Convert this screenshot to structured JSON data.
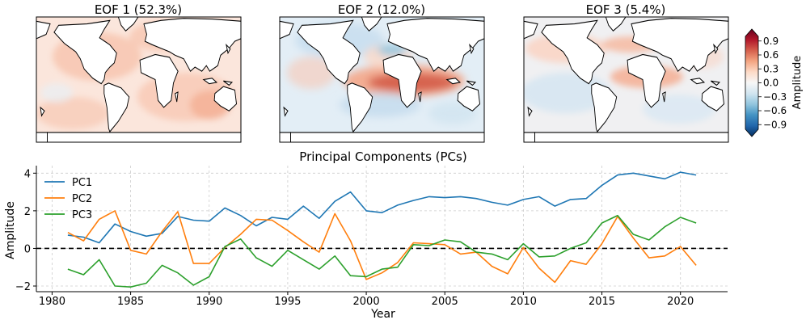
{
  "maps": [
    {
      "title": "EOF 1 (52.3%)"
    },
    {
      "title": "EOF 2 (12.0%)"
    },
    {
      "title": "EOF 3 (5.4%)"
    }
  ],
  "colorbar": {
    "label": "Amplitude",
    "ticks": [
      "0.9",
      "0.6",
      "0.3",
      "0.0",
      "−0.3",
      "−0.6",
      "−0.9"
    ],
    "range": [
      -1.0,
      1.0
    ],
    "colors": [
      "#053061",
      "#2166ac",
      "#4393c3",
      "#92c5de",
      "#d1e5f0",
      "#f7f7f7",
      "#fddbc7",
      "#f4a582",
      "#d6604d",
      "#b2182b",
      "#67001f"
    ]
  },
  "chart_data": {
    "type": "line",
    "title": "Principal Components (PCs)",
    "xlabel": "Year",
    "ylabel": "Amplitude",
    "xlim": [
      1979,
      2023
    ],
    "ylim": [
      -2.3,
      4.4
    ],
    "xticks": [
      1980,
      1985,
      1990,
      1995,
      2000,
      2005,
      2010,
      2015,
      2020
    ],
    "yticks": [
      -2,
      0,
      2,
      4
    ],
    "xtick_labels": [
      "1980",
      "1985",
      "1990",
      "1995",
      "2000",
      "2005",
      "2010",
      "2015",
      "2020"
    ],
    "ytick_labels": [
      "−2",
      "0",
      "2",
      "4"
    ],
    "zero_line": 0,
    "legend": "top-left",
    "x": [
      1981,
      1982,
      1983,
      1984,
      1985,
      1986,
      1987,
      1988,
      1989,
      1990,
      1991,
      1992,
      1993,
      1994,
      1995,
      1996,
      1997,
      1998,
      1999,
      2000,
      2001,
      2002,
      2003,
      2004,
      2005,
      2006,
      2007,
      2008,
      2009,
      2010,
      2011,
      2012,
      2013,
      2014,
      2015,
      2016,
      2017,
      2018,
      2019,
      2020,
      2021
    ],
    "series": [
      {
        "name": "PC1",
        "color": "#1f77b4",
        "values": [
          0.7,
          0.6,
          0.3,
          1.3,
          0.9,
          0.65,
          0.8,
          1.7,
          1.5,
          1.45,
          2.15,
          1.75,
          1.2,
          1.65,
          1.55,
          2.25,
          1.6,
          2.5,
          3.0,
          2.0,
          1.9,
          2.3,
          2.55,
          2.75,
          2.7,
          2.75,
          2.65,
          2.45,
          2.3,
          2.6,
          2.75,
          2.25,
          2.6,
          2.65,
          3.35,
          3.9,
          4.0,
          3.85,
          3.7,
          4.05,
          3.9
        ]
      },
      {
        "name": "PC2",
        "color": "#ff7f0e",
        "values": [
          0.85,
          0.4,
          1.55,
          2.0,
          -0.1,
          -0.3,
          0.9,
          1.95,
          -0.8,
          -0.8,
          0.05,
          0.75,
          1.55,
          1.5,
          0.95,
          0.35,
          -0.2,
          1.85,
          0.4,
          -1.65,
          -1.3,
          -0.75,
          0.3,
          0.25,
          0.2,
          -0.3,
          -0.2,
          -0.95,
          -1.35,
          0.05,
          -1.05,
          -1.8,
          -0.65,
          -0.85,
          0.25,
          1.7,
          0.55,
          -0.5,
          -0.4,
          0.1,
          -0.9
        ]
      },
      {
        "name": "PC3",
        "color": "#2ca02c",
        "values": [
          -1.1,
          -1.4,
          -0.6,
          -2.0,
          -2.05,
          -1.85,
          -0.9,
          -1.3,
          -1.95,
          -1.5,
          0.1,
          0.5,
          -0.5,
          -0.95,
          -0.1,
          -0.6,
          -1.1,
          -0.4,
          -1.45,
          -1.5,
          -1.1,
          -1.0,
          0.2,
          0.15,
          0.45,
          0.35,
          -0.2,
          -0.3,
          -0.6,
          0.25,
          -0.45,
          -0.4,
          0.0,
          0.3,
          1.35,
          1.75,
          0.75,
          0.45,
          1.15,
          1.65,
          1.35
        ]
      }
    ]
  }
}
